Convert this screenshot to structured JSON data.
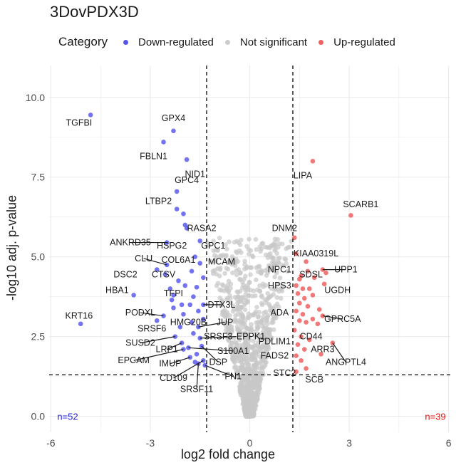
{
  "title": "3DovPDX3D",
  "legend": {
    "title": "Category",
    "items": [
      {
        "label": "Down-regulated",
        "color": "#5555ee"
      },
      {
        "label": "Not significant",
        "color": "#cccccc"
      },
      {
        "label": "Up-regulated",
        "color": "#f06060"
      }
    ]
  },
  "colors": {
    "down": "#5a5af0",
    "ns": "#c8c8c8",
    "up": "#f06060",
    "grid": "#ebebeb",
    "threshold": "#000000"
  },
  "counts": {
    "down": "n=52",
    "up": "n=39",
    "down_color": "#1f1fd0",
    "up_color": "#e01010"
  },
  "chart_data": {
    "type": "scatter",
    "title": "3DovPDX3D",
    "xlabel": "log2 fold change",
    "ylabel": "-log10 adj. p-value",
    "xlim": [
      -6.05,
      6.05
    ],
    "ylim": [
      -0.5,
      11
    ],
    "xticks": [
      -6,
      -3,
      0,
      3,
      6
    ],
    "yticks": [
      0.0,
      2.5,
      5.0,
      7.5,
      10.0
    ],
    "ytick_labels": [
      "0.0",
      "2.5",
      "5.0",
      "7.5",
      "10.0"
    ],
    "grid": true,
    "legend_position": "top",
    "thresholds": {
      "x": [
        -1.3,
        1.3
      ],
      "y": 1.3
    },
    "down_points": [
      [
        -4.8,
        9.45
      ],
      [
        -2.3,
        8.95
      ],
      [
        -2.6,
        8.6
      ],
      [
        -1.9,
        8.05
      ],
      [
        -2.2,
        7.05
      ],
      [
        -2.2,
        6.5
      ],
      [
        -2.0,
        6.35
      ],
      [
        -1.95,
        6.0
      ],
      [
        -1.9,
        5.9
      ],
      [
        -1.5,
        5.5
      ],
      [
        -2.5,
        5.45
      ],
      [
        -1.65,
        5.0
      ],
      [
        -2.5,
        4.75
      ],
      [
        -2.55,
        4.45
      ],
      [
        -1.75,
        4.55
      ],
      [
        -1.4,
        4.35
      ],
      [
        -2.15,
        4.25
      ],
      [
        -2.4,
        4.0
      ],
      [
        -1.95,
        4.1
      ],
      [
        -1.6,
        4.05
      ],
      [
        -2.3,
        3.8
      ],
      [
        -3.5,
        3.8
      ],
      [
        -1.7,
        3.75
      ],
      [
        -1.4,
        3.5
      ],
      [
        -2.35,
        3.65
      ],
      [
        -2.05,
        3.5
      ],
      [
        -1.8,
        3.5
      ],
      [
        -2.3,
        3.4
      ],
      [
        -1.55,
        3.3
      ],
      [
        -2.0,
        3.2
      ],
      [
        -2.6,
        3.15
      ],
      [
        -2.8,
        3.0
      ],
      [
        -1.75,
        2.95
      ],
      [
        -1.4,
        3.05
      ],
      [
        -1.55,
        2.8
      ],
      [
        -2.1,
        2.8
      ],
      [
        -1.7,
        2.6
      ],
      [
        -2.25,
        2.5
      ],
      [
        -1.5,
        2.45
      ],
      [
        -2.05,
        2.3
      ],
      [
        -1.85,
        2.15
      ],
      [
        -1.45,
        2.2
      ],
      [
        -2.0,
        2.1
      ],
      [
        -1.6,
        1.95
      ],
      [
        -1.8,
        1.85
      ],
      [
        -1.4,
        1.75
      ],
      [
        -1.55,
        1.65
      ],
      [
        -1.65,
        1.7
      ],
      [
        -1.35,
        1.6
      ],
      [
        -5.1,
        2.9
      ],
      [
        -2.8,
        4.6
      ],
      [
        -1.5,
        4.8
      ]
    ],
    "up_points": [
      [
        1.9,
        8.0
      ],
      [
        3.05,
        6.3
      ],
      [
        1.35,
        5.6
      ],
      [
        1.4,
        5.1
      ],
      [
        1.7,
        4.85
      ],
      [
        2.2,
        4.6
      ],
      [
        2.3,
        4.5
      ],
      [
        1.75,
        4.55
      ],
      [
        1.55,
        4.4
      ],
      [
        1.95,
        4.35
      ],
      [
        1.5,
        4.3
      ],
      [
        2.25,
        4.15
      ],
      [
        1.4,
        4.1
      ],
      [
        1.6,
        4.0
      ],
      [
        1.8,
        4.0
      ],
      [
        1.45,
        3.85
      ],
      [
        1.65,
        3.7
      ],
      [
        1.9,
        3.8
      ],
      [
        1.5,
        3.55
      ],
      [
        1.75,
        3.45
      ],
      [
        2.1,
        3.35
      ],
      [
        1.4,
        3.3
      ],
      [
        1.6,
        3.2
      ],
      [
        1.9,
        3.05
      ],
      [
        2.2,
        3.15
      ],
      [
        1.5,
        3.0
      ],
      [
        1.7,
        2.95
      ],
      [
        2.05,
        2.9
      ],
      [
        1.35,
        2.7
      ],
      [
        1.55,
        2.5
      ],
      [
        1.8,
        2.4
      ],
      [
        1.45,
        2.25
      ],
      [
        2.5,
        2.3
      ],
      [
        1.65,
        2.1
      ],
      [
        2.15,
        1.95
      ],
      [
        1.4,
        1.9
      ],
      [
        1.55,
        1.75
      ],
      [
        1.7,
        1.5
      ],
      [
        1.4,
        1.4
      ]
    ],
    "ns_cloud": {
      "count": 1100,
      "y_max": 5.6
    },
    "labels": [
      {
        "gene": "TGFBI",
        "x": -4.8,
        "y": 9.45,
        "lx": -5.15,
        "ly": 9.2,
        "anchor": "middle",
        "line": false
      },
      {
        "gene": "GPX4",
        "x": -2.3,
        "y": 8.95,
        "lx": -2.3,
        "ly": 9.35,
        "anchor": "middle",
        "line": false
      },
      {
        "gene": "FBLN1",
        "x": -2.6,
        "y": 8.6,
        "lx": -2.9,
        "ly": 8.15,
        "anchor": "middle",
        "line": false
      },
      {
        "gene": "NID1",
        "x": -1.9,
        "y": 8.05,
        "lx": -1.65,
        "ly": 7.6,
        "anchor": "middle",
        "line": false
      },
      {
        "gene": "GPC4",
        "x": -2.2,
        "y": 7.05,
        "lx": -1.9,
        "ly": 7.4,
        "anchor": "middle",
        "line": false
      },
      {
        "gene": "LTBP2",
        "x": -2.2,
        "y": 6.5,
        "lx": -2.75,
        "ly": 6.75,
        "anchor": "middle",
        "line": false
      },
      {
        "gene": "RASA2",
        "x": -1.95,
        "y": 6.0,
        "lx": -1.45,
        "ly": 5.9,
        "anchor": "middle",
        "line": false
      },
      {
        "gene": "HSPG2",
        "x": -1.9,
        "y": 5.9,
        "lx": -2.35,
        "ly": 5.35,
        "anchor": "middle",
        "line": false
      },
      {
        "gene": "GPC1",
        "x": -1.5,
        "y": 5.5,
        "lx": -1.1,
        "ly": 5.35,
        "anchor": "middle",
        "line": false
      },
      {
        "gene": "ANKRD35",
        "x": -2.5,
        "y": 5.45,
        "lx": -3.6,
        "ly": 5.45,
        "anchor": "middle",
        "line": true
      },
      {
        "gene": "COL6A1",
        "x": -1.65,
        "y": 5.0,
        "lx": -2.15,
        "ly": 4.9,
        "anchor": "middle",
        "line": false
      },
      {
        "gene": "CLU",
        "x": -2.5,
        "y": 4.75,
        "lx": -3.2,
        "ly": 4.95,
        "anchor": "middle",
        "line": true
      },
      {
        "gene": "MCAM",
        "x": -1.4,
        "y": 4.35,
        "lx": -0.85,
        "ly": 4.85,
        "anchor": "middle",
        "line": false
      },
      {
        "gene": "DSC2",
        "x": -2.55,
        "y": 4.45,
        "lx": -3.75,
        "ly": 4.45,
        "anchor": "middle",
        "line": false
      },
      {
        "gene": "CTSV",
        "x": -2.15,
        "y": 4.25,
        "lx": -2.6,
        "ly": 4.45,
        "anchor": "middle",
        "line": false
      },
      {
        "gene": "HBA1",
        "x": -3.5,
        "y": 3.8,
        "lx": -4.0,
        "ly": 3.95,
        "anchor": "middle",
        "line": false
      },
      {
        "gene": "TFPI",
        "x": -2.4,
        "y": 4.0,
        "lx": -2.3,
        "ly": 3.85,
        "anchor": "middle",
        "line": false
      },
      {
        "gene": "DTX3L",
        "x": -1.4,
        "y": 3.5,
        "lx": -0.85,
        "ly": 3.5,
        "anchor": "middle",
        "line": true
      },
      {
        "gene": "PODXL",
        "x": -2.6,
        "y": 3.15,
        "lx": -3.3,
        "ly": 3.25,
        "anchor": "middle",
        "line": true
      },
      {
        "gene": "HMG20B",
        "x": -1.55,
        "y": 3.3,
        "lx": -1.85,
        "ly": 2.95,
        "anchor": "middle",
        "line": false
      },
      {
        "gene": "JUP",
        "x": -1.55,
        "y": 2.8,
        "lx": -0.75,
        "ly": 2.95,
        "anchor": "middle",
        "line": true
      },
      {
        "gene": "SRSF6",
        "x": -2.8,
        "y": 3.0,
        "lx": -2.95,
        "ly": 2.75,
        "anchor": "middle",
        "line": false
      },
      {
        "gene": "KRT16",
        "x": -5.1,
        "y": 2.9,
        "lx": -5.15,
        "ly": 3.15,
        "anchor": "middle",
        "line": false
      },
      {
        "gene": "SRSF3",
        "x": -1.7,
        "y": 2.6,
        "lx": -0.95,
        "ly": 2.5,
        "anchor": "middle",
        "line": false
      },
      {
        "gene": "EPPK1",
        "x": -1.5,
        "y": 2.45,
        "lx": -0.4,
        "ly": 2.5,
        "anchor": "start",
        "line": true
      },
      {
        "gene": "SUSD2",
        "x": -2.25,
        "y": 2.5,
        "lx": -3.3,
        "ly": 2.3,
        "anchor": "middle",
        "line": true
      },
      {
        "gene": "LRP1",
        "x": -2.05,
        "y": 2.3,
        "lx": -2.5,
        "ly": 2.1,
        "anchor": "middle",
        "line": true
      },
      {
        "gene": "S100A1",
        "x": -1.85,
        "y": 2.15,
        "lx": -0.5,
        "ly": 2.05,
        "anchor": "middle",
        "line": true
      },
      {
        "gene": "EPCAM",
        "x": -2.0,
        "y": 2.1,
        "lx": -3.5,
        "ly": 1.75,
        "anchor": "middle",
        "line": true
      },
      {
        "gene": "IMUP",
        "x": -1.8,
        "y": 1.85,
        "lx": -2.4,
        "ly": 1.65,
        "anchor": "middle",
        "line": true
      },
      {
        "gene": "DSP",
        "x": -1.45,
        "y": 2.2,
        "lx": -0.95,
        "ly": 1.7,
        "anchor": "middle",
        "line": true
      },
      {
        "gene": "CD109",
        "x": -1.4,
        "y": 1.75,
        "lx": -2.3,
        "ly": 1.2,
        "anchor": "middle",
        "line": true
      },
      {
        "gene": "FN1",
        "x": -1.35,
        "y": 1.6,
        "lx": -0.5,
        "ly": 1.25,
        "anchor": "middle",
        "line": true
      },
      {
        "gene": "SRSF11",
        "x": -1.55,
        "y": 1.65,
        "lx": -1.6,
        "ly": 0.85,
        "anchor": "middle",
        "line": true
      },
      {
        "gene": "LIPA",
        "x": 1.9,
        "y": 8.0,
        "lx": 1.6,
        "ly": 7.55,
        "anchor": "middle",
        "line": false
      },
      {
        "gene": "SCARB1",
        "x": 3.05,
        "y": 6.3,
        "lx": 3.35,
        "ly": 6.65,
        "anchor": "middle",
        "line": false
      },
      {
        "gene": "DNM2",
        "x": 1.35,
        "y": 5.6,
        "lx": 1.05,
        "ly": 5.9,
        "anchor": "middle",
        "line": false
      },
      {
        "gene": "KIAA0319L",
        "x": 1.4,
        "y": 5.1,
        "lx": 2.0,
        "ly": 5.1,
        "anchor": "middle",
        "line": false
      },
      {
        "gene": "NPC1",
        "x": 1.7,
        "y": 4.85,
        "lx": 0.9,
        "ly": 4.6,
        "anchor": "middle",
        "line": false
      },
      {
        "gene": "UPP1",
        "x": 2.2,
        "y": 4.6,
        "lx": 2.9,
        "ly": 4.6,
        "anchor": "middle",
        "line": true
      },
      {
        "gene": "SDSL",
        "x": 1.75,
        "y": 4.55,
        "lx": 1.85,
        "ly": 4.45,
        "anchor": "middle",
        "line": false
      },
      {
        "gene": "HPS3",
        "x": 1.5,
        "y": 4.3,
        "lx": 0.9,
        "ly": 4.1,
        "anchor": "middle",
        "line": false
      },
      {
        "gene": "UGDH",
        "x": 2.25,
        "y": 4.15,
        "lx": 2.65,
        "ly": 3.95,
        "anchor": "middle",
        "line": false
      },
      {
        "gene": "ADA",
        "x": 1.4,
        "y": 3.3,
        "lx": 0.9,
        "ly": 3.25,
        "anchor": "middle",
        "line": false
      },
      {
        "gene": "GPRC5A",
        "x": 2.2,
        "y": 3.15,
        "lx": 2.8,
        "ly": 3.05,
        "anchor": "middle",
        "line": true
      },
      {
        "gene": "CD44",
        "x": 2.05,
        "y": 2.9,
        "lx": 1.85,
        "ly": 2.5,
        "anchor": "middle",
        "line": false
      },
      {
        "gene": "PDLIM1",
        "x": 1.55,
        "y": 2.5,
        "lx": 0.75,
        "ly": 2.35,
        "anchor": "middle",
        "line": false
      },
      {
        "gene": "ARR3",
        "x": 2.15,
        "y": 1.95,
        "lx": 2.2,
        "ly": 2.1,
        "anchor": "middle",
        "line": false
      },
      {
        "gene": "FADS2",
        "x": 1.4,
        "y": 1.9,
        "lx": 0.75,
        "ly": 1.9,
        "anchor": "middle",
        "line": false
      },
      {
        "gene": "ANGPTL4",
        "x": 2.5,
        "y": 2.3,
        "lx": 2.9,
        "ly": 1.7,
        "anchor": "middle",
        "line": true
      },
      {
        "gene": "STC2",
        "x": 1.4,
        "y": 1.4,
        "lx": 1.05,
        "ly": 1.35,
        "anchor": "middle",
        "line": false
      },
      {
        "gene": "SCB",
        "x": 1.7,
        "y": 1.5,
        "lx": 1.95,
        "ly": 1.15,
        "anchor": "middle",
        "line": false
      }
    ]
  }
}
